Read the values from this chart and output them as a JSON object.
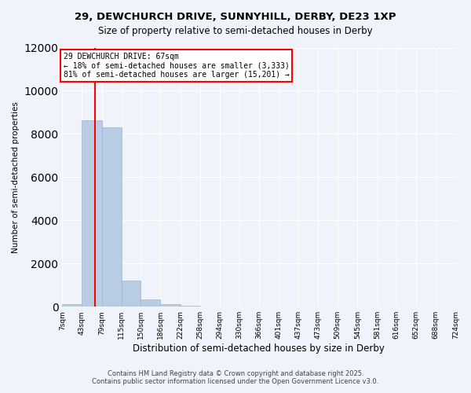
{
  "title_line1": "29, DEWCHURCH DRIVE, SUNNYHILL, DERBY, DE23 1XP",
  "title_line2": "Size of property relative to semi-detached houses in Derby",
  "xlabel": "Distribution of semi-detached houses by size in Derby",
  "ylabel": "Number of semi-detached properties",
  "property_size": 67,
  "property_label": "29 DEWCHURCH DRIVE: 67sqm",
  "annotation_line1": "← 18% of semi-detached houses are smaller (3,333)",
  "annotation_line2": "81% of semi-detached houses are larger (15,201) →",
  "bin_edges": [
    7,
    43,
    79,
    115,
    150,
    186,
    222,
    258,
    294,
    330,
    366,
    401,
    437,
    473,
    509,
    545,
    581,
    616,
    652,
    688,
    724
  ],
  "bin_labels": [
    "7sqm",
    "43sqm",
    "79sqm",
    "115sqm",
    "150sqm",
    "186sqm",
    "222sqm",
    "258sqm",
    "294sqm",
    "330sqm",
    "366sqm",
    "401sqm",
    "437sqm",
    "473sqm",
    "509sqm",
    "545sqm",
    "581sqm",
    "616sqm",
    "652sqm",
    "688sqm",
    "724sqm"
  ],
  "bar_heights": [
    100,
    8650,
    8300,
    1200,
    350,
    100,
    30,
    10,
    5,
    3,
    2,
    1,
    1,
    1,
    0,
    0,
    0,
    0,
    0,
    0
  ],
  "bar_color": "#b8cce4",
  "bar_edge_color": "#9ab3d5",
  "property_line_color": "red",
  "box_edge_color": "red",
  "ylim": [
    0,
    12000
  ],
  "yticks": [
    0,
    2000,
    4000,
    6000,
    8000,
    10000,
    12000
  ],
  "background_color": "#f0f4fa",
  "plot_background": "#f0f4fa",
  "grid_color": "#ffffff",
  "footer_line1": "Contains HM Land Registry data © Crown copyright and database right 2025.",
  "footer_line2": "Contains public sector information licensed under the Open Government Licence v3.0."
}
